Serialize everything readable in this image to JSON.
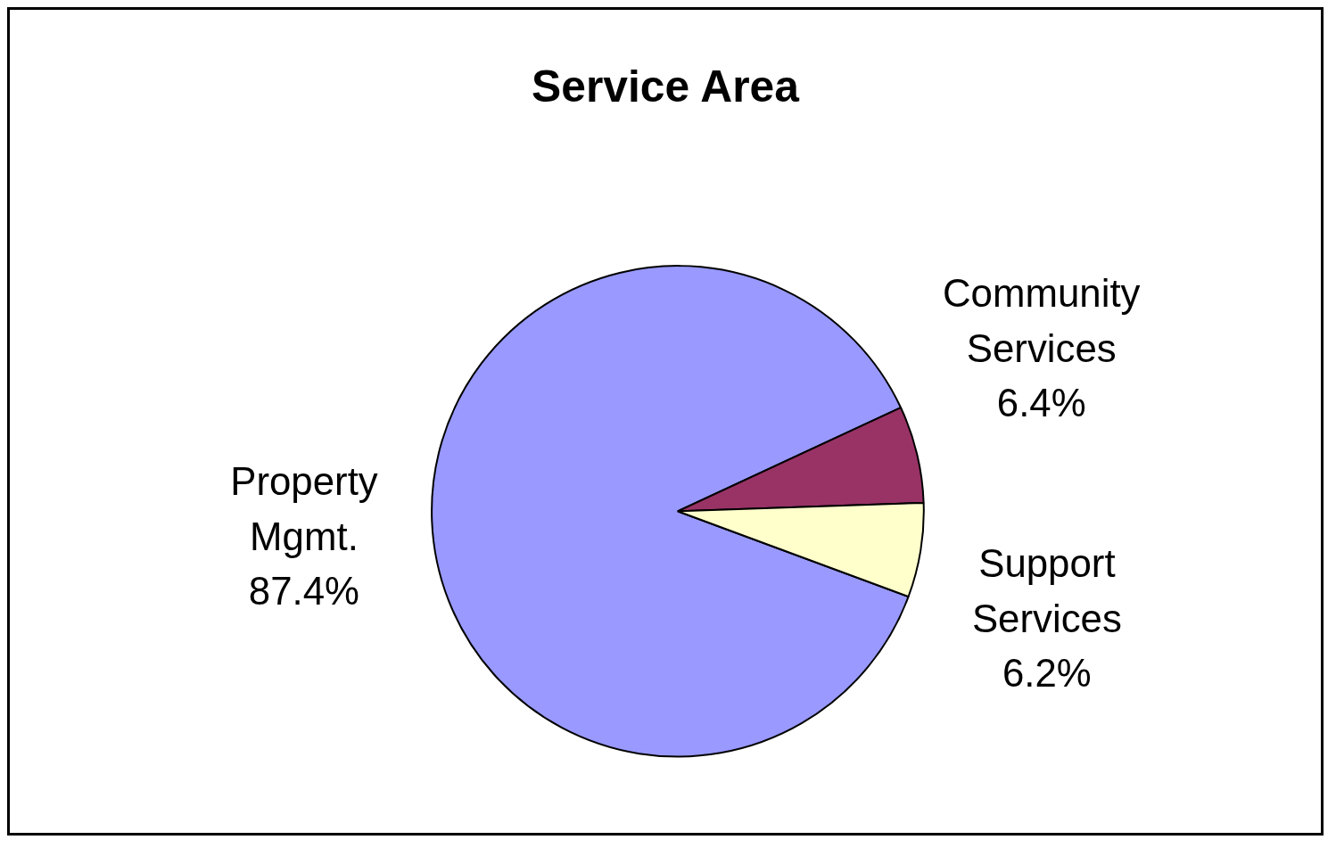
{
  "chart_data": {
    "type": "pie",
    "title": "Service Area",
    "categories": [
      "Property Mgmt.",
      "Community Services",
      "Support Services"
    ],
    "values": [
      87.4,
      6.4,
      6.2
    ],
    "colors": [
      "#9999ff",
      "#993366",
      "#ffffcc"
    ],
    "value_labels": [
      "87.4%",
      "6.4%",
      "6.2%"
    ],
    "legend": false
  }
}
